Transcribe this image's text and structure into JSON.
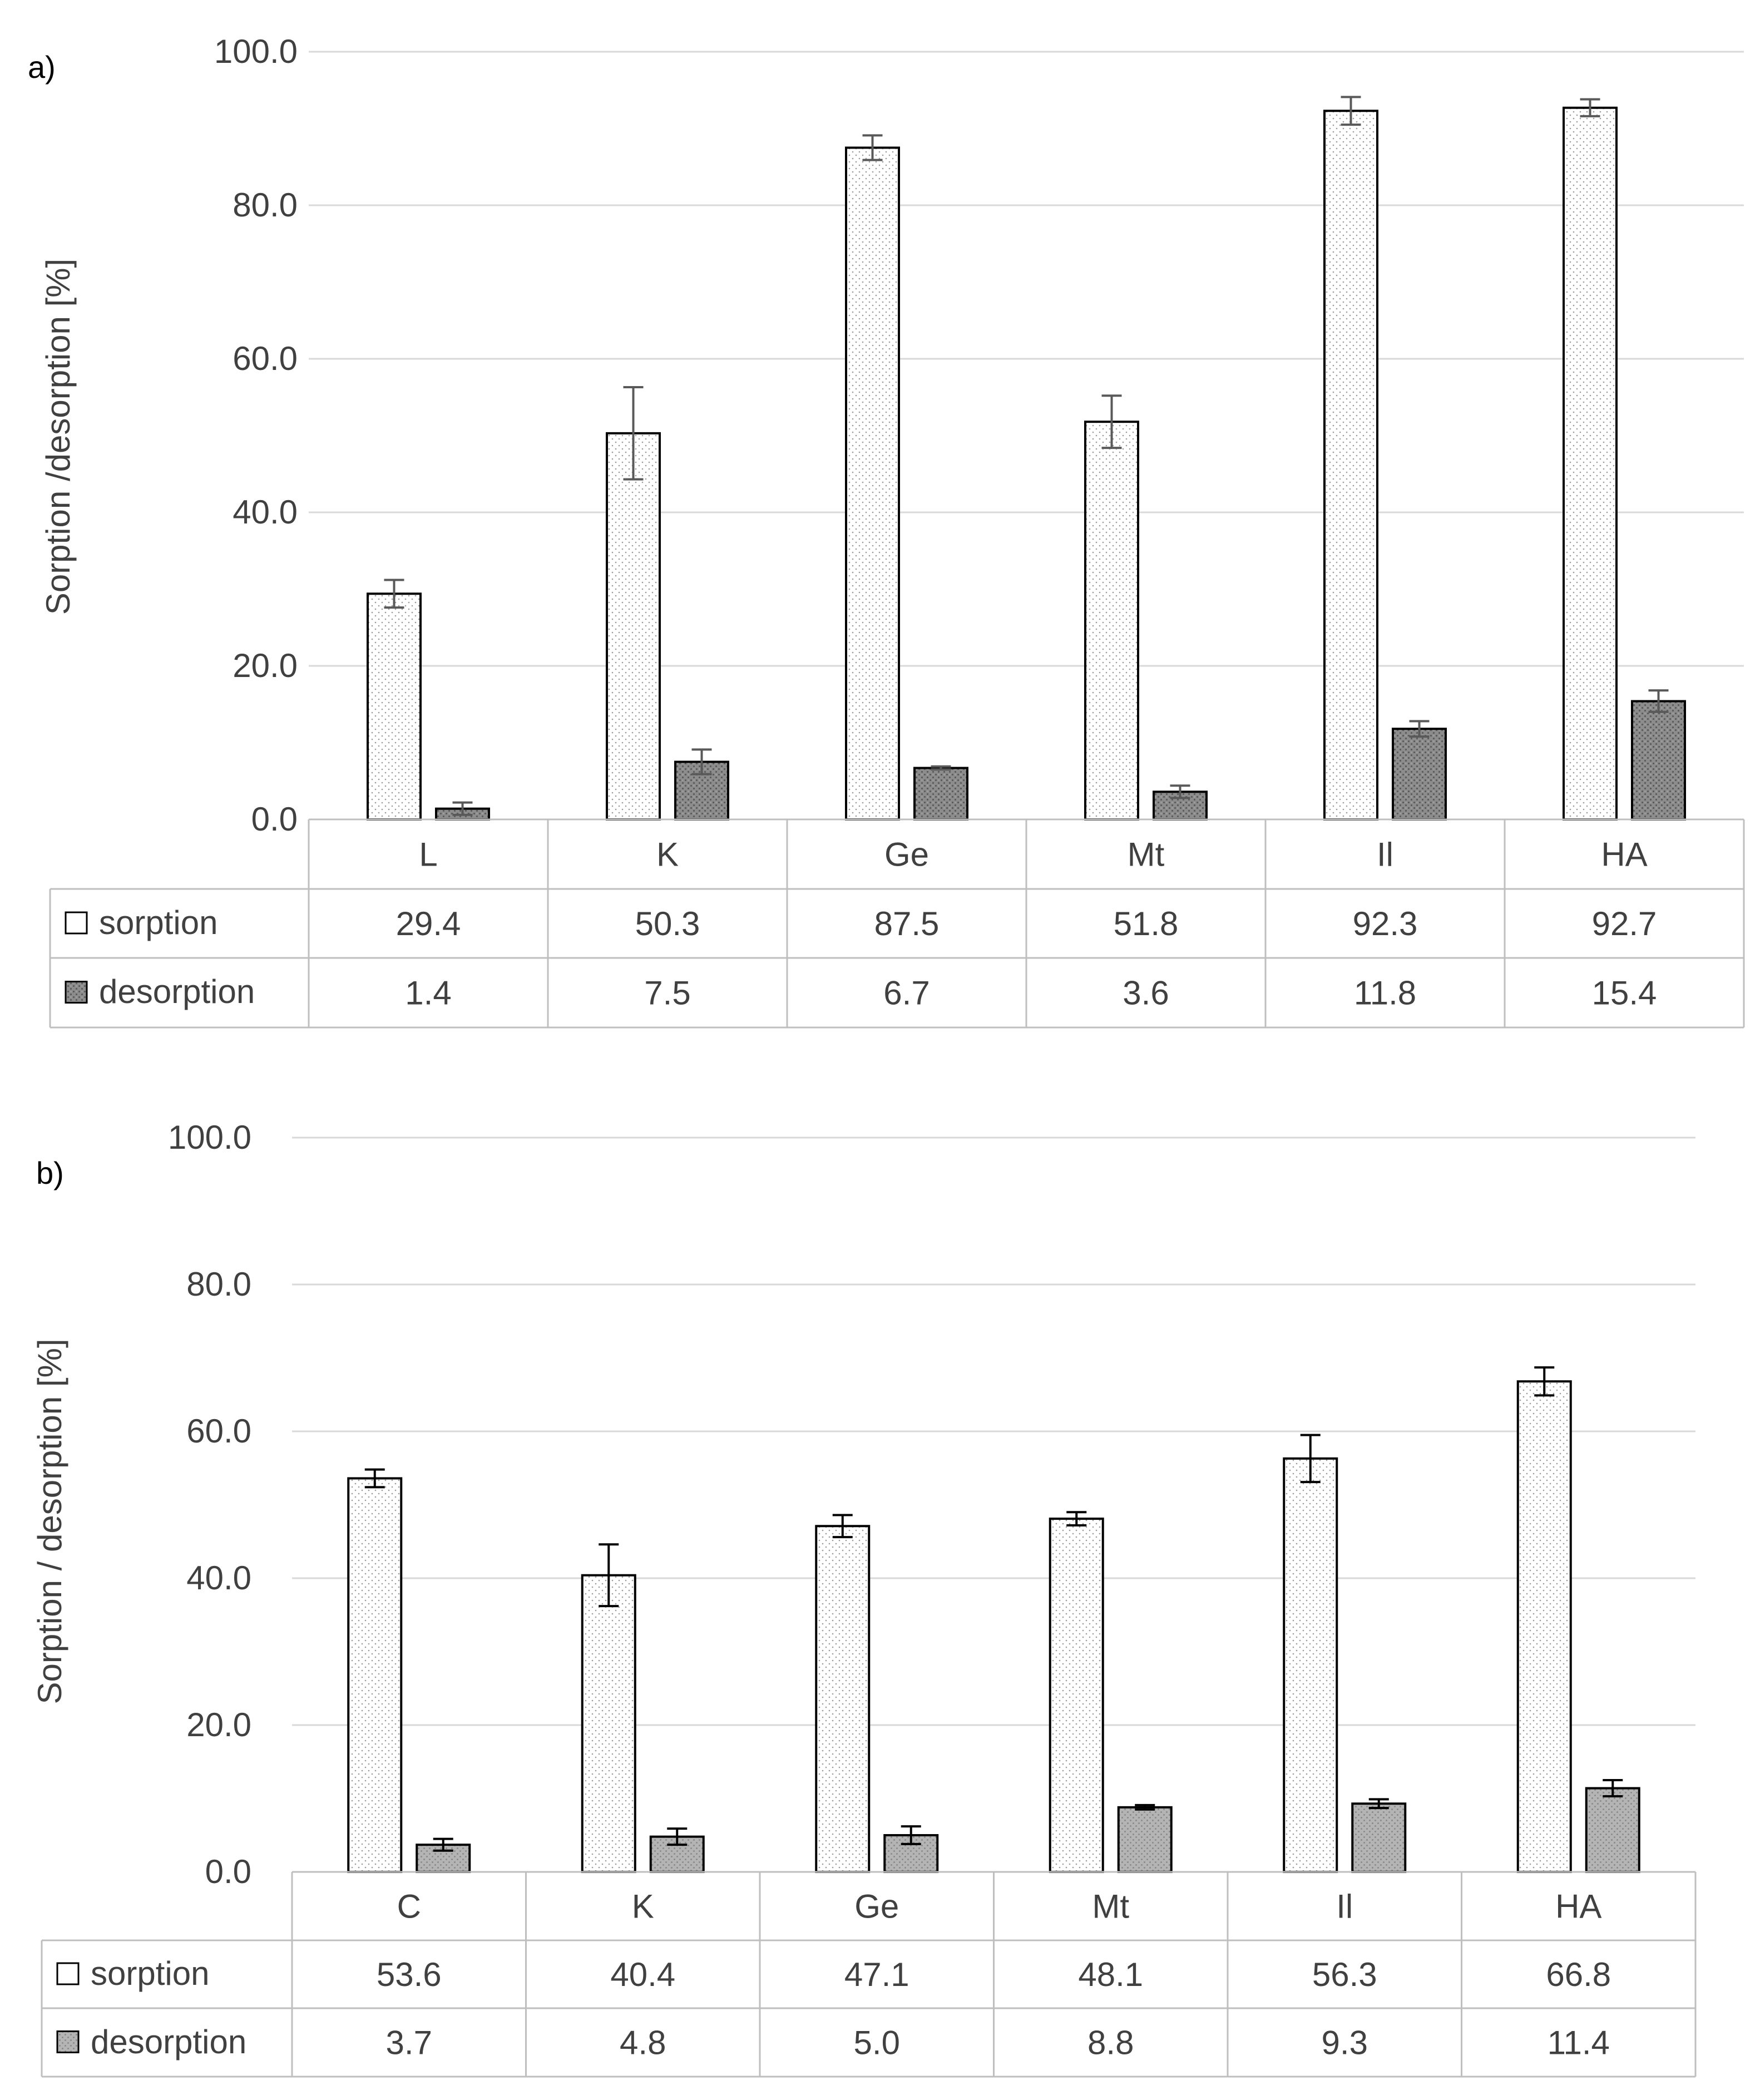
{
  "chart_data": [
    {
      "type": "bar",
      "panel_label": "a)",
      "categories": [
        "L",
        "K",
        "Ge",
        "Mt",
        "Il",
        "HA"
      ],
      "series": [
        {
          "name": "sorption",
          "values": [
            29.4,
            50.3,
            87.5,
            51.8,
            92.3,
            92.7
          ],
          "errors": [
            1.8,
            6.0,
            1.6,
            3.4,
            1.8,
            1.1
          ],
          "labels": [
            "29.4",
            "50.3",
            "87.5",
            "51.8",
            "92.3",
            "92.7"
          ]
        },
        {
          "name": "desorption",
          "values": [
            1.4,
            7.5,
            6.7,
            3.6,
            11.8,
            15.4
          ],
          "errors": [
            0.8,
            1.6,
            0.2,
            0.8,
            1.0,
            1.4
          ],
          "labels": [
            "1.4",
            "7.5",
            "6.7",
            "3.6",
            "11.8",
            "15.4"
          ]
        }
      ],
      "title": "",
      "xlabel": "",
      "ylabel": "Sorption /desorption [%]",
      "ylim": [
        0,
        100
      ],
      "yticks": [
        "0.0",
        "20.0",
        "40.0",
        "60.0",
        "80.0",
        "100.0"
      ],
      "grid": true,
      "legend": "data-table"
    },
    {
      "type": "bar",
      "panel_label": "b)",
      "categories": [
        "C",
        "K",
        "Ge",
        "Mt",
        "Il",
        "HA"
      ],
      "series": [
        {
          "name": "sorption",
          "values": [
            53.6,
            40.4,
            47.1,
            48.1,
            56.3,
            66.8
          ],
          "errors": [
            1.2,
            4.2,
            1.5,
            0.9,
            3.2,
            1.9
          ],
          "labels": [
            "53.6",
            "40.4",
            "47.1",
            "48.1",
            "56.3",
            "66.8"
          ]
        },
        {
          "name": "desorption",
          "values": [
            3.7,
            4.8,
            5.0,
            8.8,
            9.3,
            11.4
          ],
          "errors": [
            0.8,
            1.1,
            1.2,
            0.3,
            0.6,
            1.1
          ],
          "labels": [
            "3.7",
            "4.8",
            "5.0",
            "8.8",
            "9.3",
            "11.4"
          ]
        }
      ],
      "title": "",
      "xlabel": "",
      "ylabel": "Sorption / desorption [%]",
      "ylim": [
        0,
        100
      ],
      "yticks": [
        "0.0",
        "20.0",
        "40.0",
        "60.0",
        "80.0",
        "100.0"
      ],
      "grid": true,
      "legend": "data-table"
    }
  ],
  "colors": {
    "sorption_fill": "#ffffff",
    "desorption_fill_a": "#8c8c8c",
    "desorption_fill_b": "#b4b4b4",
    "bar_stroke": "#000000",
    "grid": "#d9d9d9",
    "error_bar_a": "#595959",
    "error_bar_b": "#000000",
    "text": "#404040",
    "table_border": "#bfbfbf"
  }
}
